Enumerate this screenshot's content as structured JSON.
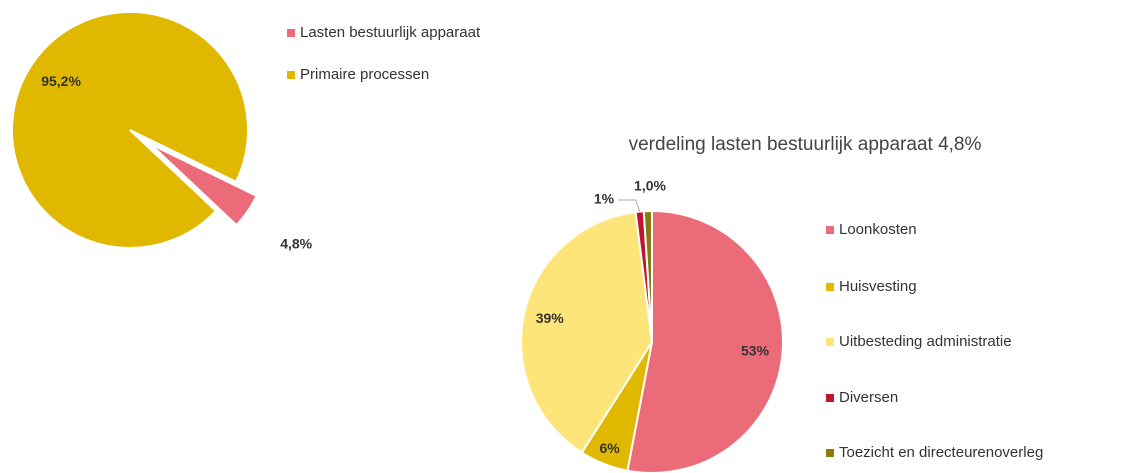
{
  "chart_data": [
    {
      "type": "pie",
      "categories": [
        "Lasten bestuurlijk apparaat",
        "Primaire processen"
      ],
      "values": [
        4.8,
        95.2
      ],
      "value_labels": [
        "4,8%",
        "95,2%"
      ],
      "colors": [
        "#ec6b78",
        "#e0b800"
      ]
    },
    {
      "type": "pie",
      "title": "verdeling lasten bestuurlijk apparaat 4,8%",
      "categories": [
        "Loonkosten",
        "Huisvesting",
        "Uitbesteding administratie",
        "Diversen",
        "Toezicht en directeurenoverleg"
      ],
      "values": [
        53,
        6,
        39,
        1,
        1.0
      ],
      "value_labels": [
        "53%",
        "6%",
        "39%",
        "1%",
        "1,0%"
      ],
      "colors": [
        "#ec6b78",
        "#e0b800",
        "#fde57a",
        "#c0162c",
        "#8a7a10"
      ]
    }
  ]
}
